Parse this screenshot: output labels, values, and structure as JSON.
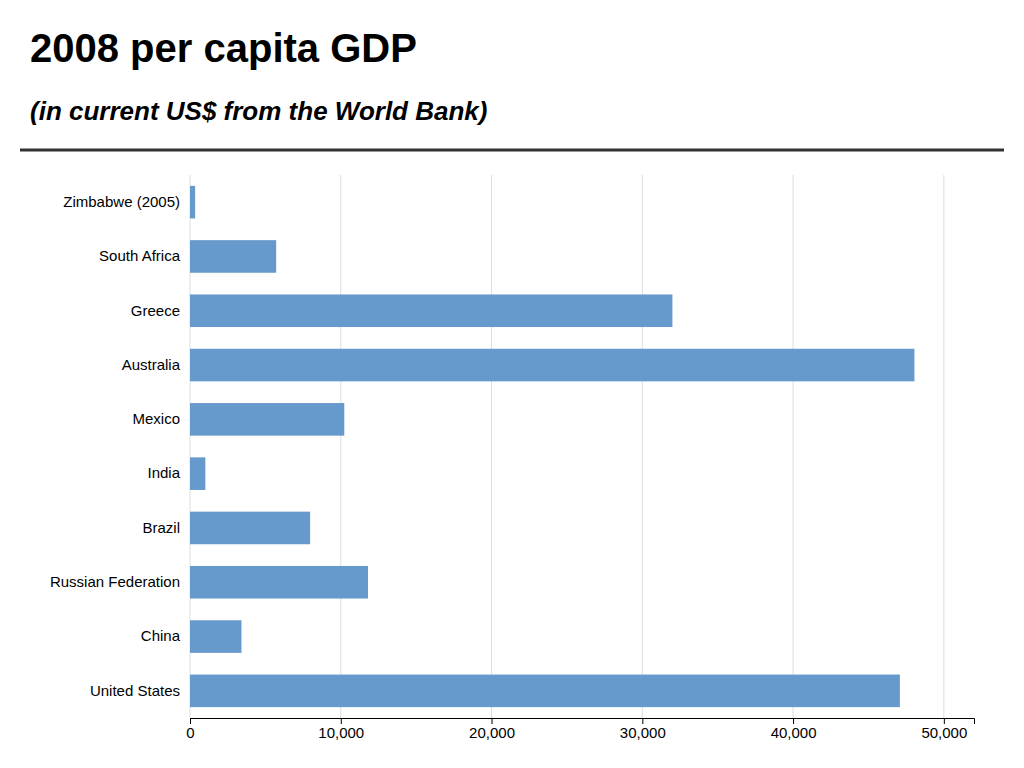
{
  "chart_data": {
    "type": "bar",
    "orientation": "horizontal",
    "title": "2008 per capita GDP",
    "subtitle": "(in current US$ from the World Bank)",
    "categories": [
      "United States",
      "China",
      "Russian Federation",
      "Brazil",
      "India",
      "Mexico",
      "Australia",
      "Greece",
      "South Africa",
      "Zimbabwe (2005)"
    ],
    "values": [
      47084,
      3414,
      11807,
      7967,
      1017,
      10232,
      48048,
      31997,
      5716,
      340
    ],
    "color": "#6699CC",
    "xlim": [
      0,
      52000
    ],
    "xticks": [
      0,
      {
        "value": 10000,
        "label": "10,000"
      },
      {
        "value": 20000,
        "label": "20,000"
      },
      {
        "value": 30000,
        "label": "30,000"
      },
      {
        "value": 40000,
        "label": "40,000"
      },
      {
        "value": 50000,
        "label": "50,000"
      }
    ],
    "grid": true
  }
}
